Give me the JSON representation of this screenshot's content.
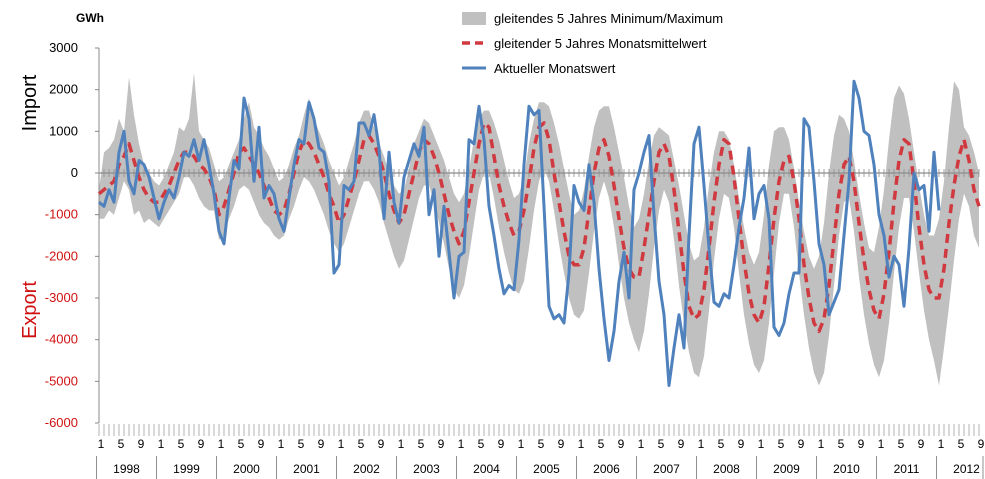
{
  "chart_data": {
    "type": "line",
    "unit_label": "GWh",
    "y_axis_upper_label": "Import",
    "y_axis_lower_label": "Export",
    "ylim": [
      -6000,
      3000
    ],
    "ytick_step": 1000,
    "yticks": [
      "3000",
      "2000",
      "1000",
      "0",
      "-1000",
      "-2000",
      "-3000",
      "-4000",
      "-5000",
      "-6000"
    ],
    "years": [
      "1998",
      "1999",
      "2000",
      "2001",
      "2002",
      "2003",
      "2004",
      "2005",
      "2006",
      "2007",
      "2008",
      "2009",
      "2010",
      "2011",
      "2012"
    ],
    "month_tick_labels": [
      "1",
      "5",
      "9"
    ],
    "months_count": 177,
    "legend": [
      {
        "name": "gleitendes 5 Jahres Minimum/Maximum",
        "style": "band",
        "color": "#c0c0c0"
      },
      {
        "name": "gleitender 5 Jahres Monatsmittelwert",
        "style": "dashed",
        "color": "#d0393f"
      },
      {
        "name": "Aktueller Monatswert",
        "style": "solid",
        "color": "#4f81bd"
      }
    ],
    "series": [
      {
        "name": "Aktueller Monatswert",
        "values": [
          -700,
          -800,
          -400,
          -700,
          500,
          1000,
          -200,
          -500,
          300,
          200,
          -100,
          -600,
          -1100,
          -700,
          -400,
          -600,
          -100,
          500,
          400,
          800,
          300,
          800,
          200,
          -500,
          -1400,
          -1700,
          -600,
          300,
          100,
          1800,
          1300,
          -200,
          1100,
          -600,
          -300,
          -500,
          -1100,
          -1400,
          -600,
          200,
          800,
          700,
          1700,
          1300,
          600,
          500,
          -200,
          -2400,
          -2200,
          -300,
          -400,
          -200,
          1200,
          1200,
          900,
          1400,
          600,
          -1100,
          500,
          -700,
          -1200,
          -100,
          300,
          700,
          400,
          1100,
          -1000,
          -400,
          -2000,
          -800,
          -1900,
          -3000,
          -2000,
          -1900,
          800,
          700,
          1600,
          800,
          -800,
          -1500,
          -2300,
          -2900,
          -2700,
          -2800,
          -1600,
          200,
          1600,
          1400,
          1500,
          -800,
          -3200,
          -3500,
          -3400,
          -3600,
          -2400,
          -300,
          -700,
          -900,
          200,
          -700,
          -2300,
          -3500,
          -4500,
          -3800,
          -2600,
          -1900,
          -3000,
          -400,
          0,
          500,
          900,
          -1000,
          -2600,
          -3400,
          -5100,
          -4200,
          -3400,
          -4200,
          -1500,
          700,
          1100,
          -300,
          -1800,
          -3100,
          -3200,
          -2900,
          -3000,
          -2200,
          -1300,
          -600,
          600,
          -1100,
          -500,
          -300,
          -1100,
          -3700,
          -3900,
          -3600,
          -2900,
          -2400,
          -2400,
          1300,
          1100,
          -200,
          -1700,
          -2200,
          -3400,
          -3100,
          -2800,
          -1500,
          -200,
          2200,
          1800,
          1000,
          900,
          200,
          -1000,
          -1500,
          -2500,
          -2000,
          -2200,
          -3200,
          -1800,
          0,
          -400,
          -300,
          -1400,
          500,
          -900
        ]
      },
      {
        "name": "gleitender 5 Jahres Monatsmittelwert",
        "values": [
          -500,
          -400,
          -300,
          -200,
          200,
          400,
          700,
          300,
          -100,
          -400,
          -600,
          -700,
          -700,
          -500,
          -300,
          0,
          300,
          500,
          500,
          400,
          200,
          100,
          -100,
          -400,
          -1000,
          -800,
          -400,
          0,
          500,
          600,
          400,
          200,
          0,
          -300,
          -600,
          -900,
          -1000,
          -900,
          -500,
          0,
          500,
          800,
          700,
          500,
          200,
          -100,
          -500,
          -800,
          -1200,
          -1000,
          -600,
          -200,
          300,
          800,
          900,
          700,
          400,
          0,
          -500,
          -900,
          -1200,
          -1000,
          -500,
          0,
          500,
          800,
          700,
          400,
          0,
          -500,
          -1000,
          -1400,
          -1700,
          -1400,
          -700,
          0,
          700,
          1200,
          1100,
          400,
          -300,
          -800,
          -1200,
          -1500,
          -1400,
          -900,
          -200,
          600,
          1100,
          1200,
          800,
          0,
          -700,
          -1400,
          -2000,
          -2200,
          -2200,
          -1800,
          -900,
          0,
          600,
          800,
          400,
          -300,
          -1100,
          -1800,
          -2300,
          -2500,
          -2500,
          -1800,
          -1000,
          -200,
          500,
          700,
          400,
          -400,
          -1400,
          -2400,
          -3200,
          -3500,
          -3400,
          -2800,
          -1800,
          -700,
          200,
          800,
          700,
          -100,
          -1100,
          -2100,
          -2900,
          -3400,
          -3600,
          -3200,
          -2200,
          -1100,
          -200,
          300,
          400,
          -200,
          -1100,
          -2200,
          -3000,
          -3600,
          -3800,
          -3500,
          -2700,
          -1600,
          -500,
          200,
          400,
          -200,
          -1200,
          -2100,
          -2800,
          -3300,
          -3500,
          -2900,
          -1900,
          -700,
          300,
          800,
          700,
          -200,
          -1300,
          -2200,
          -2800,
          -3000,
          -3000,
          -2300,
          -1200,
          -300,
          400,
          800,
          300,
          -400,
          -800
        ]
      },
      {
        "name": "gleitendes 5 Jahres Minimum/Maximum",
        "min": [
          -1100,
          -1100,
          -900,
          -1000,
          -600,
          -200,
          -400,
          -1000,
          -900,
          -1200,
          -1100,
          -1200,
          -1300,
          -1100,
          -900,
          -700,
          -500,
          -100,
          -100,
          -300,
          -600,
          -800,
          -900,
          -900,
          -1600,
          -1500,
          -1100,
          -800,
          -400,
          -300,
          -400,
          -700,
          -1000,
          -1200,
          -1300,
          -1500,
          -1600,
          -1500,
          -1100,
          -800,
          -400,
          -100,
          -200,
          -400,
          -700,
          -1000,
          -1400,
          -1700,
          -1900,
          -1700,
          -1300,
          -900,
          -500,
          -200,
          -200,
          -400,
          -700,
          -1200,
          -1600,
          -2000,
          -2300,
          -2100,
          -1600,
          -1100,
          -600,
          -300,
          -300,
          -700,
          -1200,
          -1700,
          -2300,
          -2800,
          -3000,
          -2700,
          -2000,
          -1200,
          -400,
          0,
          0,
          -600,
          -1300,
          -1900,
          -2400,
          -2800,
          -2900,
          -2600,
          -1800,
          -900,
          -200,
          100,
          -200,
          -900,
          -1700,
          -2400,
          -3000,
          -3400,
          -3500,
          -3300,
          -2400,
          -1400,
          -600,
          -200,
          -600,
          -1300,
          -2200,
          -3000,
          -3600,
          -4000,
          -4300,
          -3800,
          -2900,
          -1800,
          -900,
          -400,
          -700,
          -1600,
          -2700,
          -3600,
          -4300,
          -4800,
          -4900,
          -4400,
          -3300,
          -2100,
          -1100,
          -500,
          -600,
          -1300,
          -2400,
          -3400,
          -4100,
          -4600,
          -4800,
          -4500,
          -3600,
          -2400,
          -1200,
          -500,
          -500,
          -1300,
          -2400,
          -3400,
          -4200,
          -4800,
          -5100,
          -4800,
          -3900,
          -2700,
          -1500,
          -700,
          -600,
          -1400,
          -2500,
          -3400,
          -4100,
          -4600,
          -4900,
          -4500,
          -3600,
          -2400,
          -1300,
          -600,
          -600,
          -1400,
          -2400,
          -3300,
          -4000,
          -4500,
          -5100,
          -4200,
          -3200,
          -2100,
          -1100,
          -500,
          -800,
          -1500,
          -1800
        ],
        "max": [
          -400,
          500,
          600,
          800,
          1300,
          1000,
          2300,
          1400,
          700,
          200,
          0,
          -200,
          -300,
          -100,
          200,
          500,
          1100,
          1000,
          1300,
          2400,
          1000,
          800,
          600,
          200,
          -200,
          -100,
          200,
          500,
          800,
          1300,
          1700,
          1100,
          900,
          600,
          400,
          100,
          -200,
          -100,
          200,
          600,
          900,
          1400,
          1800,
          1300,
          1000,
          700,
          300,
          0,
          -300,
          -100,
          300,
          700,
          1200,
          1500,
          1500,
          1100,
          700,
          400,
          0,
          -300,
          -500,
          -400,
          100,
          700,
          1000,
          1300,
          1200,
          900,
          600,
          300,
          -100,
          -500,
          -700,
          -500,
          100,
          800,
          1300,
          1500,
          1500,
          1200,
          800,
          300,
          -200,
          -600,
          -500,
          -100,
          700,
          1300,
          1700,
          1700,
          1600,
          1200,
          700,
          100,
          -500,
          -1000,
          -900,
          -400,
          400,
          1100,
          1500,
          1600,
          1600,
          1100,
          500,
          -100,
          -800,
          -1300,
          -1100,
          -500,
          300,
          900,
          1100,
          1000,
          900,
          300,
          -300,
          -1000,
          -1700,
          -2100,
          -2000,
          -1300,
          -300,
          500,
          1000,
          1000,
          800,
          200,
          -600,
          -1300,
          -1900,
          -2200,
          -1900,
          -1000,
          200,
          1000,
          1100,
          1100,
          800,
          100,
          -700,
          -1400,
          -2000,
          -2300,
          -2000,
          -1200,
          0,
          900,
          1400,
          1300,
          1000,
          300,
          -500,
          -1200,
          -1800,
          -1900,
          -1300,
          -400,
          800,
          1800,
          2100,
          1900,
          1300,
          500,
          -300,
          -1000,
          -1500,
          -1500,
          -1100,
          -200,
          1100,
          2200,
          2000,
          1100,
          900,
          500,
          0
        ]
      }
    ]
  }
}
